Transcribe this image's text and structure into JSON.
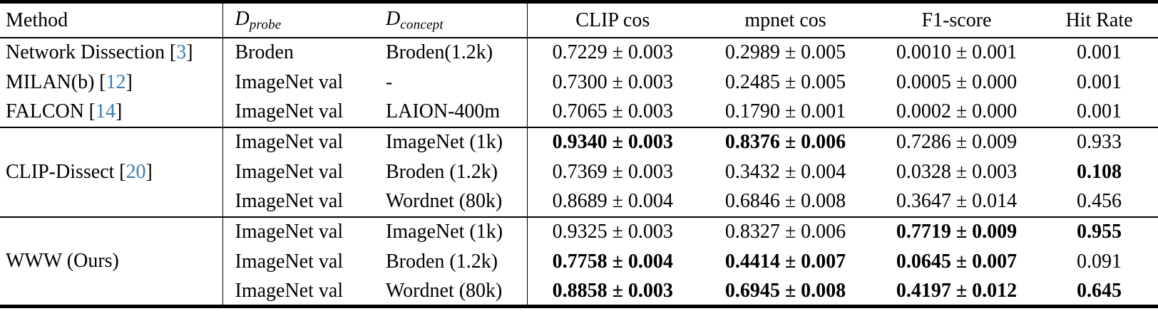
{
  "table": {
    "headers": {
      "method": "Method",
      "d_probe": {
        "symbol": "D",
        "sub": "probe"
      },
      "d_concept": {
        "symbol": "D",
        "sub": "concept"
      },
      "clip_cos": "CLIP cos",
      "mpnet_cos": "mpnet cos",
      "f1_score": "F1-score",
      "hit_rate": "Hit Rate"
    },
    "citation": {
      "open": "[",
      "close": "]"
    },
    "colors": {
      "citation_blue": "#3e7cb1",
      "rule_black": "#000000",
      "background": "#ffffff"
    },
    "groups": [
      {
        "rows": [
          {
            "method": {
              "name": "Network Dissection",
              "cite": "3"
            },
            "d_probe": "Broden",
            "d_concept": "Broden(1.2k)",
            "clip_cos": {
              "v": "0.7229 ± 0.003",
              "bold": false
            },
            "mpnet_cos": {
              "v": "0.2989 ± 0.005",
              "bold": false
            },
            "f1_score": {
              "v": "0.0010 ± 0.001",
              "bold": false
            },
            "hit_rate": {
              "v": "0.001",
              "bold": false
            }
          },
          {
            "method": {
              "name": "MILAN(b)",
              "cite": "12"
            },
            "d_probe": "ImageNet val",
            "d_concept": "-",
            "clip_cos": {
              "v": "0.7300 ± 0.003",
              "bold": false
            },
            "mpnet_cos": {
              "v": "0.2485 ± 0.005",
              "bold": false
            },
            "f1_score": {
              "v": "0.0005 ± 0.000",
              "bold": false
            },
            "hit_rate": {
              "v": "0.001",
              "bold": false
            }
          },
          {
            "method": {
              "name": "FALCON",
              "cite": "14"
            },
            "d_probe": "ImageNet val",
            "d_concept": "LAION-400m",
            "clip_cos": {
              "v": "0.7065 ± 0.003",
              "bold": false
            },
            "mpnet_cos": {
              "v": "0.1790 ± 0.001",
              "bold": false
            },
            "f1_score": {
              "v": "0.0002 ± 0.000",
              "bold": false
            },
            "hit_rate": {
              "v": "0.001",
              "bold": false
            }
          }
        ]
      },
      {
        "label": {
          "name": "CLIP-Dissect",
          "cite": "20"
        },
        "rows": [
          {
            "d_probe": "ImageNet val",
            "d_concept": "ImageNet (1k)",
            "clip_cos": {
              "v": "0.9340 ± 0.003",
              "bold": true
            },
            "mpnet_cos": {
              "v": "0.8376 ± 0.006",
              "bold": true
            },
            "f1_score": {
              "v": "0.7286 ± 0.009",
              "bold": false
            },
            "hit_rate": {
              "v": "0.933",
              "bold": false
            }
          },
          {
            "d_probe": "ImageNet val",
            "d_concept": "Broden (1.2k)",
            "clip_cos": {
              "v": "0.7369 ± 0.003",
              "bold": false
            },
            "mpnet_cos": {
              "v": "0.3432 ± 0.004",
              "bold": false
            },
            "f1_score": {
              "v": "0.0328 ± 0.003",
              "bold": false
            },
            "hit_rate": {
              "v": "0.108",
              "bold": true
            }
          },
          {
            "d_probe": "ImageNet val",
            "d_concept": "Wordnet (80k)",
            "clip_cos": {
              "v": "0.8689 ± 0.004",
              "bold": false
            },
            "mpnet_cos": {
              "v": "0.6846 ± 0.008",
              "bold": false
            },
            "f1_score": {
              "v": "0.3647 ± 0.014",
              "bold": false
            },
            "hit_rate": {
              "v": "0.456",
              "bold": false
            }
          }
        ]
      },
      {
        "label": {
          "name": "WWW (Ours)"
        },
        "rows": [
          {
            "d_probe": "ImageNet val",
            "d_concept": "ImageNet (1k)",
            "clip_cos": {
              "v": "0.9325 ± 0.003",
              "bold": false
            },
            "mpnet_cos": {
              "v": "0.8327 ± 0.006",
              "bold": false
            },
            "f1_score": {
              "v": "0.7719 ± 0.009",
              "bold": true
            },
            "hit_rate": {
              "v": "0.955",
              "bold": true
            }
          },
          {
            "d_probe": "ImageNet val",
            "d_concept": "Broden (1.2k)",
            "clip_cos": {
              "v": "0.7758 ± 0.004",
              "bold": true
            },
            "mpnet_cos": {
              "v": "0.4414 ± 0.007",
              "bold": true
            },
            "f1_score": {
              "v": "0.0645 ± 0.007",
              "bold": true
            },
            "hit_rate": {
              "v": "0.091",
              "bold": false
            }
          },
          {
            "d_probe": "ImageNet val",
            "d_concept": "Wordnet (80k)",
            "clip_cos": {
              "v": "0.8858 ± 0.003",
              "bold": true
            },
            "mpnet_cos": {
              "v": "0.6945 ± 0.008",
              "bold": true
            },
            "f1_score": {
              "v": "0.4197 ± 0.012",
              "bold": true
            },
            "hit_rate": {
              "v": "0.645",
              "bold": true
            }
          }
        ]
      }
    ]
  }
}
